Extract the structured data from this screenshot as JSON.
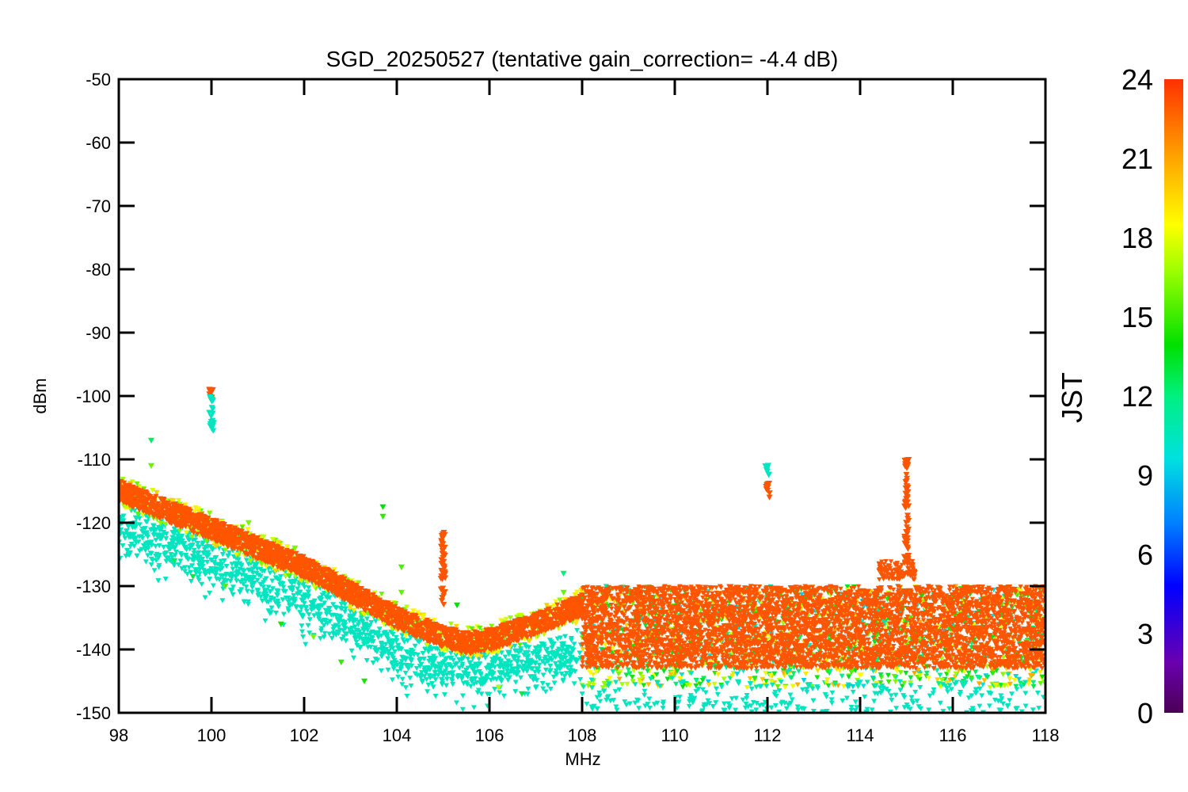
{
  "chart_data": {
    "type": "scatter",
    "title": "SGD_20250527 (tentative gain_correction= -4.4 dB)",
    "xlabel": "MHz",
    "ylabel": "dBm",
    "xlim": [
      98,
      118
    ],
    "ylim": [
      -150,
      -50
    ],
    "x_ticks": [
      "98",
      "100",
      "102",
      "104",
      "106",
      "108",
      "110",
      "112",
      "114",
      "116",
      "118"
    ],
    "y_ticks": [
      "-50",
      "-60",
      "-70",
      "-80",
      "-90",
      "-100",
      "-110",
      "-120",
      "-130",
      "-140",
      "-150"
    ],
    "grid": false,
    "colorbar": {
      "label": "JST",
      "range": [
        0,
        24
      ],
      "ticks": [
        "24",
        "21",
        "18",
        "15",
        "12",
        "9",
        "6",
        "3",
        "0"
      ],
      "colormap": "rainbow"
    },
    "noise_floor_series": {
      "evening_red": {
        "color_value_jst": 23,
        "x": [
          98,
          100,
          102,
          103,
          104,
          105,
          105.5,
          106,
          107,
          108
        ],
        "y": [
          -115,
          -121,
          -127,
          -131,
          -135,
          -138,
          -139,
          -138.5,
          -136,
          -133
        ]
      },
      "morning_green": {
        "color_value_jst": 10,
        "x": [
          98,
          100,
          102,
          103,
          104,
          105,
          106,
          107,
          108
        ],
        "y": [
          -119,
          -125,
          -131,
          -135,
          -139,
          -141.5,
          -142,
          -141,
          -139
        ]
      },
      "high_band_scatter": {
        "x_range": [
          108,
          118
        ],
        "y_range": [
          -146,
          -129
        ],
        "dominant_color_value_jst": 23
      }
    },
    "carriers": [
      {
        "x": 100,
        "y_top": -98.5,
        "y_bottom": -101,
        "color_value_jst": 23
      },
      {
        "x": 100,
        "y_top": -100,
        "y_bottom": -106,
        "color_value_jst": 10
      },
      {
        "x": 105,
        "y_top": -121,
        "y_bottom": -133,
        "color_value_jst": 23
      },
      {
        "x": 112,
        "y_top": -110.5,
        "y_bottom": -113,
        "color_value_jst": 10
      },
      {
        "x": 112,
        "y_top": -113,
        "y_bottom": -116,
        "color_value_jst": 23
      },
      {
        "x": 115,
        "y_top": -110,
        "y_bottom": -126,
        "color_value_jst": 23
      }
    ]
  }
}
